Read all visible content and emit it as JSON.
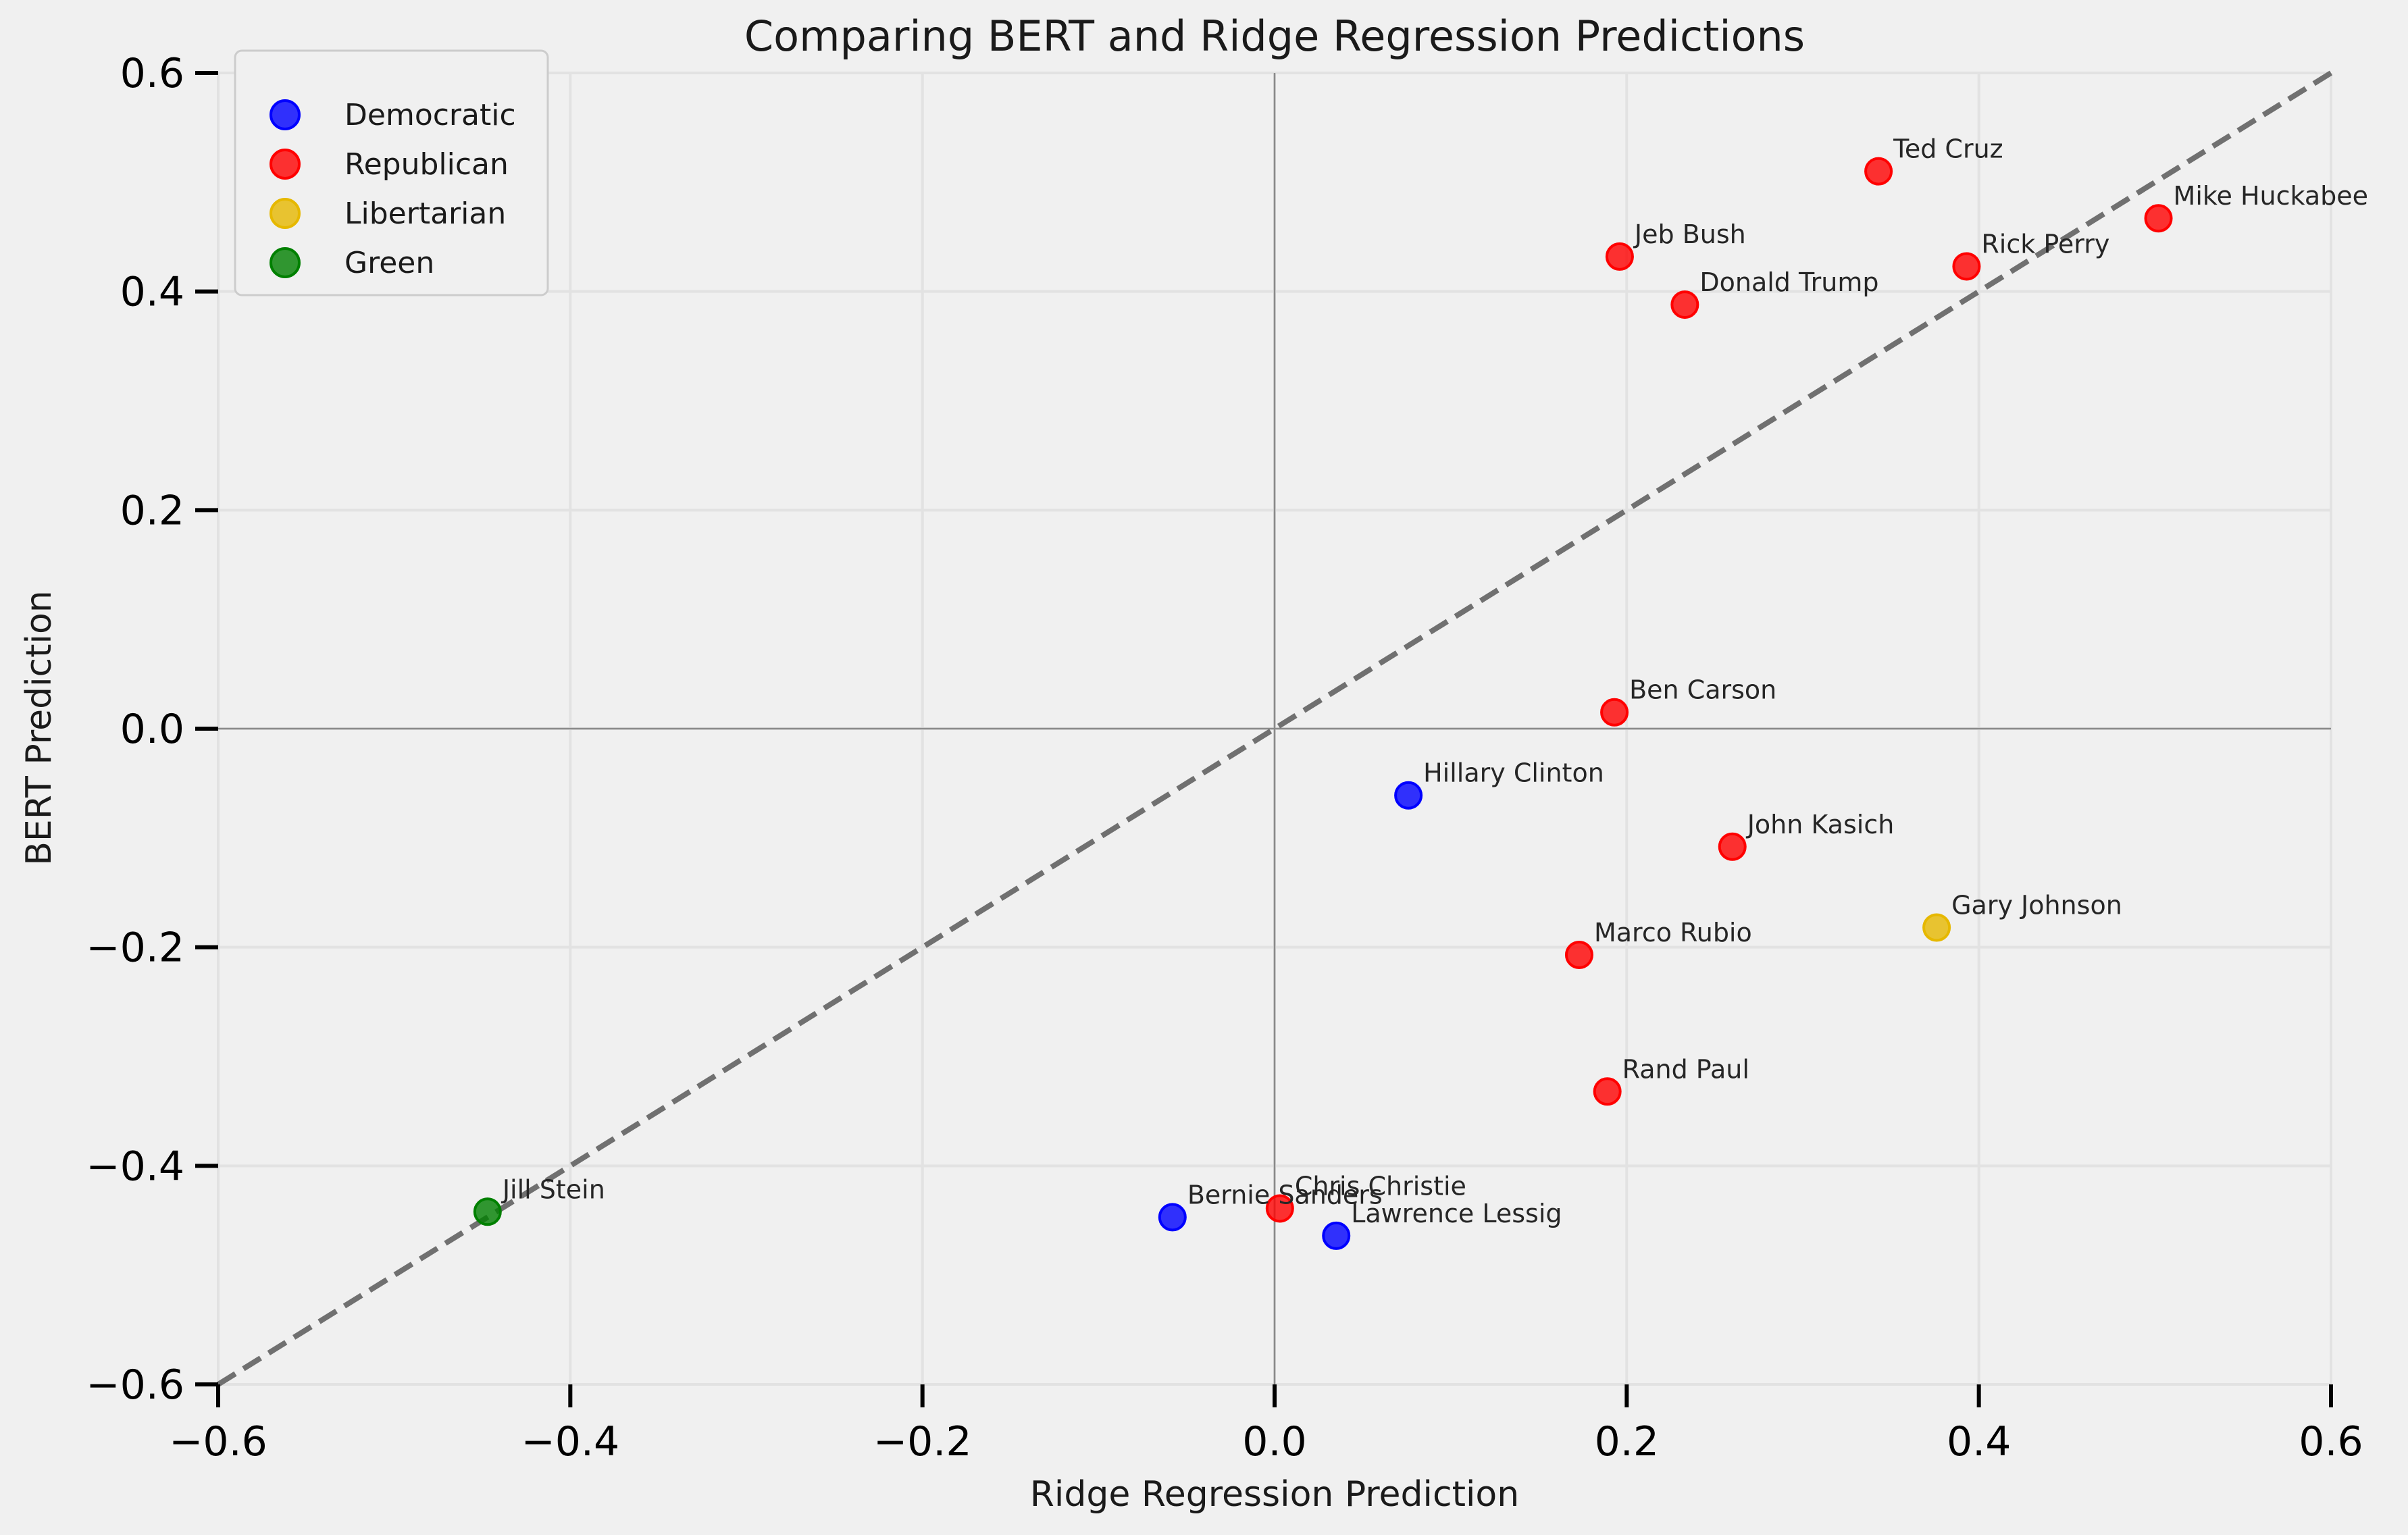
{
  "chart_data": {
    "type": "scatter",
    "title": "Comparing BERT and Ridge Regression Predictions",
    "xlabel": "Ridge Regression Prediction",
    "ylabel": "BERT Prediction",
    "xlim": [
      -0.6,
      0.6
    ],
    "ylim": [
      -0.6,
      0.6
    ],
    "x_ticks": [
      -0.6,
      -0.4,
      -0.2,
      0.0,
      0.2,
      0.4,
      0.6
    ],
    "y_ticks": [
      -0.6,
      -0.4,
      -0.2,
      0.0,
      0.2,
      0.4,
      0.6
    ],
    "x_tick_labels": [
      "−0.6",
      "−0.4",
      "−0.2",
      "0.0",
      "0.2",
      "0.4",
      "0.6"
    ],
    "y_tick_labels": [
      "−0.6",
      "−0.4",
      "−0.2",
      "0.0",
      "0.2",
      "0.4",
      "0.6"
    ],
    "grid": true,
    "reference_line": "y = x (dashed)",
    "legend_position": "upper-left",
    "series": [
      {
        "name": "Democratic",
        "color": "#0000ff",
        "points": [
          {
            "label": "Hillary Clinton",
            "x": 0.076,
            "y": -0.061
          },
          {
            "label": "Bernie Sanders",
            "x": -0.058,
            "y": -0.447
          },
          {
            "label": "Lawrence Lessig",
            "x": 0.035,
            "y": -0.464
          }
        ]
      },
      {
        "name": "Republican",
        "color": "#ff0000",
        "points": [
          {
            "label": "Ted Cruz",
            "x": 0.343,
            "y": 0.51
          },
          {
            "label": "Mike Huckabee",
            "x": 0.502,
            "y": 0.467
          },
          {
            "label": "Jeb Bush",
            "x": 0.196,
            "y": 0.432
          },
          {
            "label": "Rick Perry",
            "x": 0.393,
            "y": 0.423
          },
          {
            "label": "Donald Trump",
            "x": 0.233,
            "y": 0.388
          },
          {
            "label": "Ben Carson",
            "x": 0.193,
            "y": 0.015
          },
          {
            "label": "John Kasich",
            "x": 0.26,
            "y": -0.108
          },
          {
            "label": "Marco Rubio",
            "x": 0.173,
            "y": -0.207
          },
          {
            "label": "Rand Paul",
            "x": 0.189,
            "y": -0.332
          },
          {
            "label": "Chris Christie",
            "x": 0.003,
            "y": -0.439
          }
        ]
      },
      {
        "name": "Libertarian",
        "color": "#e6b800",
        "points": [
          {
            "label": "Gary Johnson",
            "x": 0.376,
            "y": -0.182
          }
        ]
      },
      {
        "name": "Green",
        "color": "#008000",
        "points": [
          {
            "label": "Jill Stein",
            "x": -0.447,
            "y": -0.442
          }
        ]
      }
    ]
  }
}
